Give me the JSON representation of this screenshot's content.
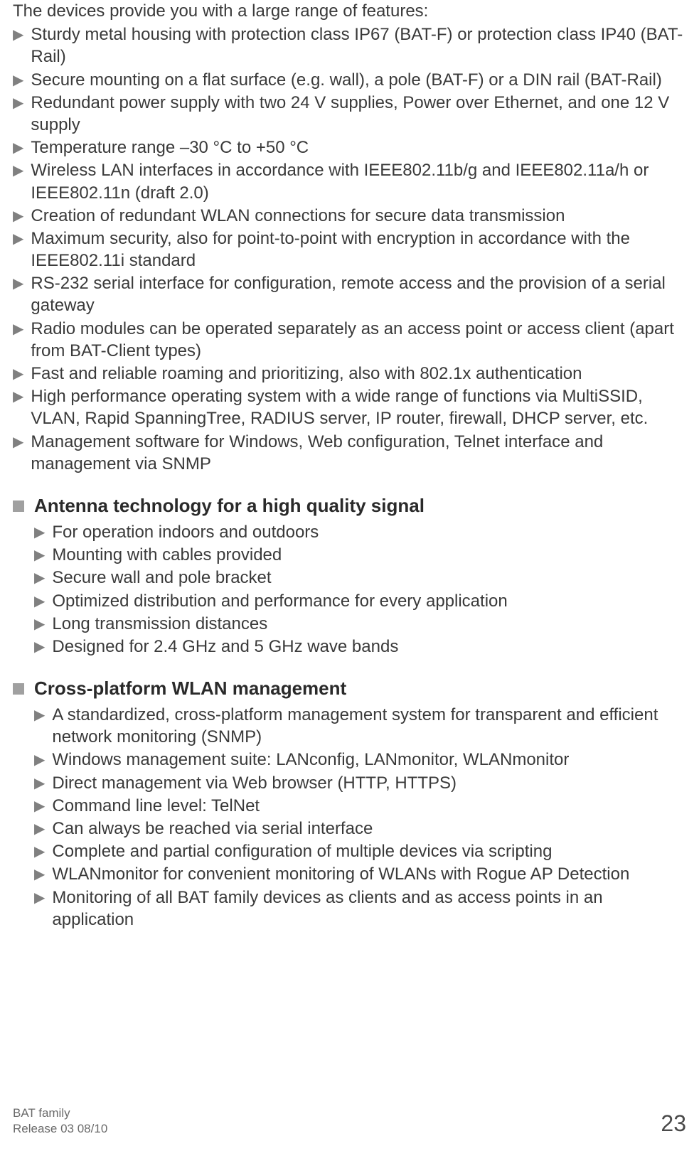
{
  "intro": "The devices provide you with a large range of features:",
  "features": [
    "Sturdy metal housing with protection class IP67 (BAT-F) or protection class IP40 (BAT-Rail)",
    "Secure mounting on a flat surface (e.g. wall), a pole (BAT-F) or a DIN rail (BAT-Rail)",
    "Redundant power supply with two 24 V supplies, Power over Ethernet, and one 12 V supply",
    "Temperature range –30 °C to +50 °C",
    "Wireless LAN interfaces in accordance with IEEE802.11b/g and IEEE802.11a/h or IEEE802.11n (draft 2.0)",
    "Creation of redundant WLAN connections for secure data transmission",
    "Maximum security, also for point-to-point with encryption in accordance with the IEEE802.11i standard",
    "RS-232 serial interface for configuration, remote access and the provision of a serial gateway",
    "Radio modules can be operated separately as an access point or access client (apart from BAT-Client types)",
    "Fast and reliable roaming and prioritizing, also with 802.1x authentication",
    "High performance operating system with a wide range of functions via MultiSSID, VLAN, Rapid SpanningTree, RADIUS server, IP router, firewall, DHCP server, etc.",
    "Management software for Windows, Web configuration, Telnet interface and management via SNMP"
  ],
  "sections": [
    {
      "title": "Antenna technology for a high quality signal",
      "items": [
        "For operation indoors and outdoors",
        "Mounting with cables provided",
        "Secure wall and pole bracket",
        "Optimized distribution and performance for every application",
        "Long transmission distances",
        "Designed for 2.4 GHz and 5 GHz wave bands"
      ]
    },
    {
      "title": "Cross-platform WLAN management",
      "items": [
        "A standardized, cross-platform management system for transparent and efficient network monitoring (SNMP)",
        "Windows management suite: LANconfig, LANmonitor, WLANmonitor",
        "Direct management via Web browser (HTTP, HTTPS)",
        "Command line level: TelNet",
        "Can always be reached via serial interface",
        "Complete and partial configuration of multiple devices via scripting",
        "WLANmonitor for convenient monitoring of WLANs with Rogue AP Detection",
        "Monitoring of all BAT family devices as clients and as access points in an application"
      ]
    }
  ],
  "footer": {
    "line1": "BAT family",
    "line2": "Release  03  08/10",
    "page": "23"
  },
  "colors": {
    "text": "#3a3a3a",
    "bullet_gray": "#808080",
    "square_bullet": "#a0a0a0",
    "heading": "#2a2a2a",
    "footer_text": "#6a6a6a",
    "page_num": "#4a4a4a",
    "background": "#ffffff"
  }
}
